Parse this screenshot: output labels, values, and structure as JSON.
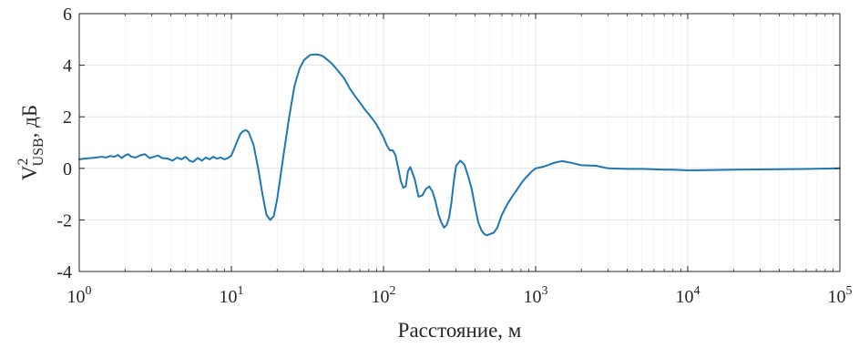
{
  "chart_data": {
    "type": "line",
    "title": "",
    "xlabel": "Расстояние, м",
    "ylabel": {
      "base": "V",
      "superscript": "2",
      "subscript": "USB",
      "unit": ", дБ"
    },
    "x_scale": "log",
    "xlim": [
      1,
      100000
    ],
    "ylim": [
      -4,
      6
    ],
    "grid": true,
    "legend": "none",
    "x_ticks": [
      {
        "base": "10",
        "exp": "0"
      },
      {
        "base": "10",
        "exp": "1"
      },
      {
        "base": "10",
        "exp": "2"
      },
      {
        "base": "10",
        "exp": "3"
      },
      {
        "base": "10",
        "exp": "4"
      },
      {
        "base": "10",
        "exp": "5"
      }
    ],
    "y_ticks": [
      "-4",
      "-2",
      "0",
      "2",
      "4",
      "6"
    ],
    "line_color": "#1f77b4",
    "series": [
      {
        "x": [
          1,
          1.1,
          1.2,
          1.3,
          1.4,
          1.5,
          1.6,
          1.7,
          1.8,
          1.9,
          2.0,
          2.1,
          2.2,
          2.35,
          2.5,
          2.7,
          2.9,
          3.1,
          3.3,
          3.5,
          3.8,
          4.1,
          4.4,
          4.7,
          5.0,
          5.3,
          5.6,
          6.0,
          6.4,
          6.8,
          7.2,
          7.6,
          8.0,
          8.5,
          9.0,
          9.5,
          10,
          10.5,
          11,
          11.5,
          12,
          12.5,
          13,
          14,
          15,
          16,
          17,
          18,
          19,
          20,
          22,
          24,
          26,
          28,
          30,
          33,
          36,
          38,
          40,
          43,
          46,
          50,
          55,
          60,
          65,
          70,
          75,
          80,
          85,
          90,
          95,
          100,
          105,
          110,
          115,
          120,
          125,
          130,
          135,
          140,
          145,
          150,
          160,
          170,
          180,
          190,
          200,
          210,
          220,
          230,
          240,
          250,
          260,
          270,
          280,
          290,
          300,
          320,
          340,
          360,
          380,
          400,
          420,
          440,
          460,
          480,
          500,
          530,
          560,
          600,
          650,
          700,
          750,
          800,
          850,
          900,
          950,
          1000,
          1100,
          1200,
          1300,
          1400,
          1500,
          1700,
          2000,
          2500,
          3000,
          4000,
          5000,
          7000,
          8000,
          10000,
          20000,
          50000,
          100000
        ],
        "y": [
          0.35,
          0.38,
          0.4,
          0.42,
          0.45,
          0.42,
          0.48,
          0.45,
          0.52,
          0.4,
          0.5,
          0.55,
          0.45,
          0.42,
          0.5,
          0.55,
          0.4,
          0.45,
          0.5,
          0.4,
          0.38,
          0.3,
          0.42,
          0.35,
          0.45,
          0.3,
          0.25,
          0.4,
          0.3,
          0.42,
          0.35,
          0.45,
          0.38,
          0.42,
          0.35,
          0.4,
          0.5,
          0.8,
          1.1,
          1.35,
          1.45,
          1.48,
          1.4,
          0.9,
          0.0,
          -1.0,
          -1.8,
          -2.0,
          -1.85,
          -1.2,
          0.5,
          2.0,
          3.2,
          3.85,
          4.2,
          4.4,
          4.42,
          4.4,
          4.35,
          4.2,
          4.05,
          3.8,
          3.5,
          3.1,
          2.8,
          2.55,
          2.3,
          2.1,
          1.9,
          1.7,
          1.45,
          1.2,
          0.9,
          0.7,
          0.7,
          0.5,
          0.0,
          -0.5,
          -0.75,
          -0.7,
          -0.1,
          0.05,
          -0.4,
          -1.1,
          -1.05,
          -0.8,
          -0.7,
          -0.9,
          -1.3,
          -1.8,
          -2.1,
          -2.3,
          -2.2,
          -1.9,
          -1.3,
          -0.5,
          0.1,
          0.3,
          0.15,
          -0.3,
          -0.8,
          -1.5,
          -2.1,
          -2.4,
          -2.55,
          -2.6,
          -2.55,
          -2.5,
          -2.3,
          -1.8,
          -1.4,
          -1.1,
          -0.85,
          -0.6,
          -0.4,
          -0.25,
          -0.1,
          0.0,
          0.05,
          0.12,
          0.2,
          0.25,
          0.28,
          0.22,
          0.12,
          0.1,
          0.0,
          -0.02,
          -0.02,
          -0.05,
          -0.05,
          -0.08,
          -0.05,
          -0.03,
          0.0
        ]
      }
    ]
  }
}
